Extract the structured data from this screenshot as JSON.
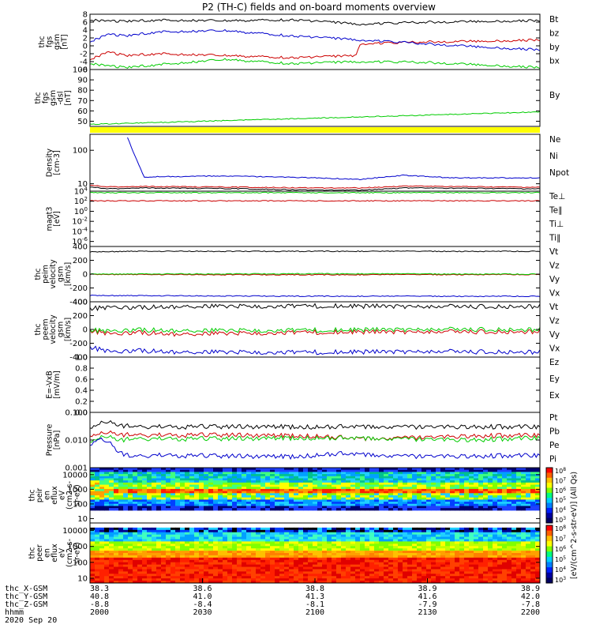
{
  "title": "P2 (TH-C) fields and on-board moments overview",
  "colors": {
    "black": "#000000",
    "red": "#cc0000",
    "green": "#00cc00",
    "blue": "#0000cc",
    "magenta": "#b000b0",
    "yellow": "#ffff00"
  },
  "footer": {
    "rows": [
      {
        "label": "thc_X-GSM",
        "values": [
          "38.3",
          "38.6",
          "38.8",
          "38.9",
          "38.9"
        ]
      },
      {
        "label": "thc_Y-GSM",
        "values": [
          "40.8",
          "41.0",
          "41.3",
          "41.6",
          "42.0"
        ]
      },
      {
        "label": "thc_Z-GSM",
        "values": [
          "-8.8",
          "-8.4",
          "-8.1",
          "-7.9",
          "-7.8"
        ]
      },
      {
        "label": "hhmm",
        "values": [
          "2000",
          "2030",
          "2100",
          "2130",
          "2200"
        ]
      }
    ],
    "date": "2020 Sep 20"
  },
  "colorbar": {
    "label": "[eV/(cm^2-s-str-eV)] (All Qs)",
    "ticks_top": [
      "10^8",
      "10^7",
      "10^6",
      "10^5",
      "10^4",
      "10^3"
    ],
    "ticks_bottom": [
      "10^8",
      "10^7",
      "10^6",
      "10^5",
      "10^4",
      "10^3"
    ]
  },
  "chart_data": [
    {
      "id": "fgs",
      "type": "line",
      "ylabel_lines": [
        "thc",
        "fgs",
        "gsm",
        "[nT]"
      ],
      "ylim": [
        -6,
        8
      ],
      "ticks": [
        "8",
        "6",
        "4",
        "2",
        "0",
        "-2",
        "-4",
        "-6"
      ],
      "legend": [
        {
          "name": "Bt",
          "color": "#000000"
        },
        {
          "name": "bz",
          "color": "#cc0000"
        },
        {
          "name": "by",
          "color": "#00cc00"
        },
        {
          "name": "bx",
          "color": "#0000cc"
        }
      ],
      "series": [
        {
          "name": "Bt",
          "color": "#000000",
          "x": [
            0,
            0.08,
            0.15,
            0.3,
            0.45,
            0.6,
            0.75,
            0.9,
            1.0
          ],
          "y": [
            6.5,
            6.2,
            6.5,
            6.3,
            6.6,
            5.5,
            6.0,
            6.2,
            6.4
          ]
        },
        {
          "name": "bz",
          "color": "#cc0000",
          "x": [
            0,
            0.04,
            0.08,
            0.15,
            0.3,
            0.45,
            0.59,
            0.6,
            0.75,
            0.9,
            1.0
          ],
          "y": [
            -3.5,
            -1.5,
            -2.5,
            -2.0,
            -2.5,
            -3.0,
            -2.5,
            0.5,
            1.0,
            1.2,
            1.5
          ]
        },
        {
          "name": "by",
          "color": "#00cc00",
          "x": [
            0,
            0.04,
            0.08,
            0.15,
            0.3,
            0.45,
            0.6,
            0.75,
            0.9,
            1.0
          ],
          "y": [
            -4.5,
            -5.0,
            -5.5,
            -4.8,
            -3.5,
            -4.5,
            -4.0,
            -4.2,
            -5.0,
            -5.5
          ]
        },
        {
          "name": "bx",
          "color": "#0000cc",
          "x": [
            0,
            0.04,
            0.08,
            0.15,
            0.3,
            0.45,
            0.6,
            0.75,
            0.9,
            1.0
          ],
          "y": [
            1.0,
            3.0,
            2.5,
            3.5,
            3.8,
            2.5,
            1.5,
            0.5,
            -0.5,
            -1.0
          ]
        }
      ]
    },
    {
      "id": "fgs_dsl",
      "type": "line",
      "ylabel_lines": [
        "thc",
        "fgs",
        "gsm",
        "-dsl",
        "[nT]"
      ],
      "ylim": [
        45,
        100
      ],
      "ticks": [
        "100",
        "90",
        "80",
        "70",
        "60",
        "50"
      ],
      "legend": [
        {
          "name": "By",
          "color": "#00cc00"
        }
      ],
      "series": [
        {
          "name": "By",
          "color": "#00cc00",
          "x": [
            0,
            0.25,
            0.5,
            0.75,
            1.0
          ],
          "y": [
            47,
            50,
            53,
            56,
            59
          ]
        }
      ]
    },
    {
      "id": "density",
      "type": "line",
      "log": true,
      "ylabel_lines": [
        "Density",
        "[cm-3]"
      ],
      "ylim": [
        6,
        300
      ],
      "ticks": [
        "100",
        "10"
      ],
      "legend": [
        {
          "name": "Ne",
          "color": "#cc0000"
        },
        {
          "name": "Ni",
          "color": "#000000"
        },
        {
          "name": "Npot",
          "color": "#0000cc"
        }
      ],
      "series": [
        {
          "name": "Npot",
          "color": "#0000cc",
          "x": [
            0.08,
            0.12,
            0.3,
            0.5,
            0.6,
            0.7,
            0.8,
            1.0
          ],
          "y": [
            300,
            16,
            17,
            15,
            13.5,
            18,
            15,
            15
          ]
        },
        {
          "name": "Ne",
          "color": "#cc0000",
          "x": [
            0,
            0.05,
            0.1,
            0.3,
            0.5,
            0.6,
            0.7,
            0.9,
            1.0
          ],
          "y": [
            9,
            8,
            8.3,
            8,
            7.5,
            7.5,
            8.5,
            8,
            7.8
          ]
        },
        {
          "name": "Ni",
          "color": "#000000",
          "x": [
            0,
            0.05,
            0.1,
            0.3,
            0.5,
            0.6,
            0.7,
            0.9,
            1.0
          ],
          "y": [
            8,
            7,
            7.5,
            7.2,
            6.5,
            6.5,
            7.5,
            7.2,
            7
          ]
        }
      ]
    },
    {
      "id": "magt3",
      "type": "line",
      "log": true,
      "ylabel_lines": [
        "magt3",
        "[eV]"
      ],
      "ylim": [
        1e-07,
        10000
      ],
      "ticks": [
        "10^4",
        "10^2",
        "10^0",
        "10^-2",
        "10^-4",
        "10^-6"
      ],
      "legend": [
        {
          "name": "Te⊥",
          "color": "#cc0000"
        },
        {
          "name": "Te∥",
          "color": "#000000"
        },
        {
          "name": "Ti⊥",
          "color": "#b000b0"
        },
        {
          "name": "Ti∥",
          "color": "#00cc00"
        }
      ],
      "series": [
        {
          "name": "Ti∥",
          "color": "#00cc00",
          "x": [
            0,
            1.0
          ],
          "y": [
            5000,
            5000
          ]
        },
        {
          "name": "Te⊥",
          "color": "#cc0000",
          "x": [
            0,
            1.0
          ],
          "y": [
            120,
            120
          ]
        }
      ]
    },
    {
      "id": "peim",
      "type": "line",
      "ylabel_lines": [
        "thc",
        "peim",
        "velocity",
        "gsm",
        "[km/s]"
      ],
      "ylim": [
        -400,
        400
      ],
      "ticks": [
        "400",
        "200",
        "0",
        "-200",
        "-400"
      ],
      "legend": [
        {
          "name": "Vt",
          "color": "#000000"
        },
        {
          "name": "Vz",
          "color": "#cc0000"
        },
        {
          "name": "Vy",
          "color": "#00cc00"
        },
        {
          "name": "Vx",
          "color": "#0000cc"
        }
      ],
      "series": [
        {
          "name": "Vt",
          "color": "#000000",
          "x": [
            0,
            0.1,
            0.5,
            1.0
          ],
          "y": [
            320,
            330,
            330,
            330
          ]
        },
        {
          "name": "Vz",
          "color": "#cc0000",
          "x": [
            0,
            0.5,
            1.0
          ],
          "y": [
            -5,
            -10,
            -5
          ]
        },
        {
          "name": "Vy",
          "color": "#00cc00",
          "x": [
            0,
            0.5,
            1.0
          ],
          "y": [
            0,
            5,
            0
          ]
        },
        {
          "name": "Vx",
          "color": "#0000cc",
          "x": [
            0,
            0.5,
            1.0
          ],
          "y": [
            -310,
            -320,
            -320
          ]
        }
      ]
    },
    {
      "id": "peem",
      "type": "line",
      "ylabel_lines": [
        "thc",
        "peem",
        "velocity",
        "gsm",
        "[km/s]"
      ],
      "ylim": [
        -400,
        400
      ],
      "ticks": [
        "400",
        "200",
        "0",
        "-200",
        "-400"
      ],
      "legend": [
        {
          "name": "Vt",
          "color": "#000000"
        },
        {
          "name": "Vz",
          "color": "#cc0000"
        },
        {
          "name": "Vy",
          "color": "#00cc00"
        },
        {
          "name": "Vx",
          "color": "#0000cc"
        }
      ],
      "series": [
        {
          "name": "Vt",
          "color": "#000000",
          "x": [
            0,
            0.05,
            0.1,
            0.2,
            0.5,
            0.75,
            1.0
          ],
          "y": [
            300,
            330,
            320,
            330,
            340,
            330,
            335
          ]
        },
        {
          "name": "Vz",
          "color": "#cc0000",
          "x": [
            0,
            0.05,
            0.1,
            0.2,
            0.5,
            0.75,
            1.0
          ],
          "y": [
            -20,
            -60,
            -40,
            -70,
            -40,
            -35,
            -30
          ]
        },
        {
          "name": "Vy",
          "color": "#00cc00",
          "x": [
            0,
            0.05,
            0.1,
            0.2,
            0.5,
            0.75,
            1.0
          ],
          "y": [
            -10,
            -20,
            0,
            -20,
            -10,
            0,
            0
          ]
        },
        {
          "name": "Vx",
          "color": "#0000cc",
          "x": [
            0,
            0.05,
            0.1,
            0.2,
            0.5,
            0.75,
            1.0
          ],
          "y": [
            -260,
            -320,
            -300,
            -330,
            -330,
            -320,
            -325
          ]
        }
      ]
    },
    {
      "id": "efield",
      "type": "line",
      "ylabel_lines": [
        "E=-VxB",
        "[mV/m]"
      ],
      "ylim": [
        0,
        1.0
      ],
      "ticks": [
        "1.0",
        "0.8",
        "0.6",
        "0.4",
        "0.2",
        "0.0"
      ],
      "legend": [
        {
          "name": "Ez",
          "color": "#cc0000"
        },
        {
          "name": "Ey",
          "color": "#00cc00"
        },
        {
          "name": "Ex",
          "color": "#0000cc"
        }
      ],
      "series": []
    },
    {
      "id": "pressure",
      "type": "line",
      "log": true,
      "ylabel_lines": [
        "Pressure",
        "[nPa]"
      ],
      "ylim": [
        0.001,
        0.1
      ],
      "ticks": [
        "0.100",
        "0.010",
        "0.001"
      ],
      "legend": [
        {
          "name": "Pt",
          "color": "#000000"
        },
        {
          "name": "Pb",
          "color": "#cc0000"
        },
        {
          "name": "Pe",
          "color": "#00cc00"
        },
        {
          "name": "Pi",
          "color": "#0000cc"
        }
      ],
      "series": [
        {
          "name": "Pt",
          "color": "#000000",
          "x": [
            0,
            0.03,
            0.06,
            0.1,
            0.2,
            0.4,
            0.6,
            0.8,
            1.0
          ],
          "y": [
            0.025,
            0.05,
            0.035,
            0.03,
            0.03,
            0.03,
            0.03,
            0.03,
            0.03
          ]
        },
        {
          "name": "Pb",
          "color": "#cc0000",
          "x": [
            0,
            0.03,
            0.06,
            0.1,
            0.3,
            0.5,
            0.6,
            0.7,
            0.85,
            1.0
          ],
          "y": [
            0.013,
            0.02,
            0.016,
            0.015,
            0.015,
            0.014,
            0.011,
            0.012,
            0.014,
            0.015
          ]
        },
        {
          "name": "Pe",
          "color": "#00cc00",
          "x": [
            0,
            0.03,
            0.06,
            0.1,
            0.3,
            0.5,
            0.7,
            0.85,
            1.0
          ],
          "y": [
            0.008,
            0.015,
            0.01,
            0.011,
            0.011,
            0.012,
            0.011,
            0.01,
            0.012
          ]
        },
        {
          "name": "Pi",
          "color": "#0000cc",
          "x": [
            0,
            0.02,
            0.04,
            0.06,
            0.09,
            0.15,
            0.3,
            0.45,
            0.55,
            0.7,
            0.85,
            1.0
          ],
          "y": [
            0.006,
            0.012,
            0.009,
            0.004,
            0.0025,
            0.0028,
            0.0026,
            0.0025,
            0.0032,
            0.0026,
            0.0026,
            0.0028
          ]
        }
      ]
    },
    {
      "id": "peir_eflux",
      "type": "heatmap",
      "ylabel_lines": [
        "thc",
        "peir",
        "en",
        "eflux",
        "eV",
        "(cm2-s-",
        "sr-eV)"
      ],
      "ylim": [
        5,
        30000
      ],
      "ticks": [
        "10000",
        "1000",
        "100",
        "10"
      ]
    },
    {
      "id": "peer_eflux",
      "type": "heatmap",
      "ylabel_lines": [
        "thc",
        "peer",
        "en",
        "eflux",
        "eV",
        "(cm2-s-",
        "sr-eV)"
      ],
      "ylim": [
        5,
        30000
      ],
      "ticks": [
        "10000",
        "1000",
        "100",
        "10"
      ]
    }
  ]
}
